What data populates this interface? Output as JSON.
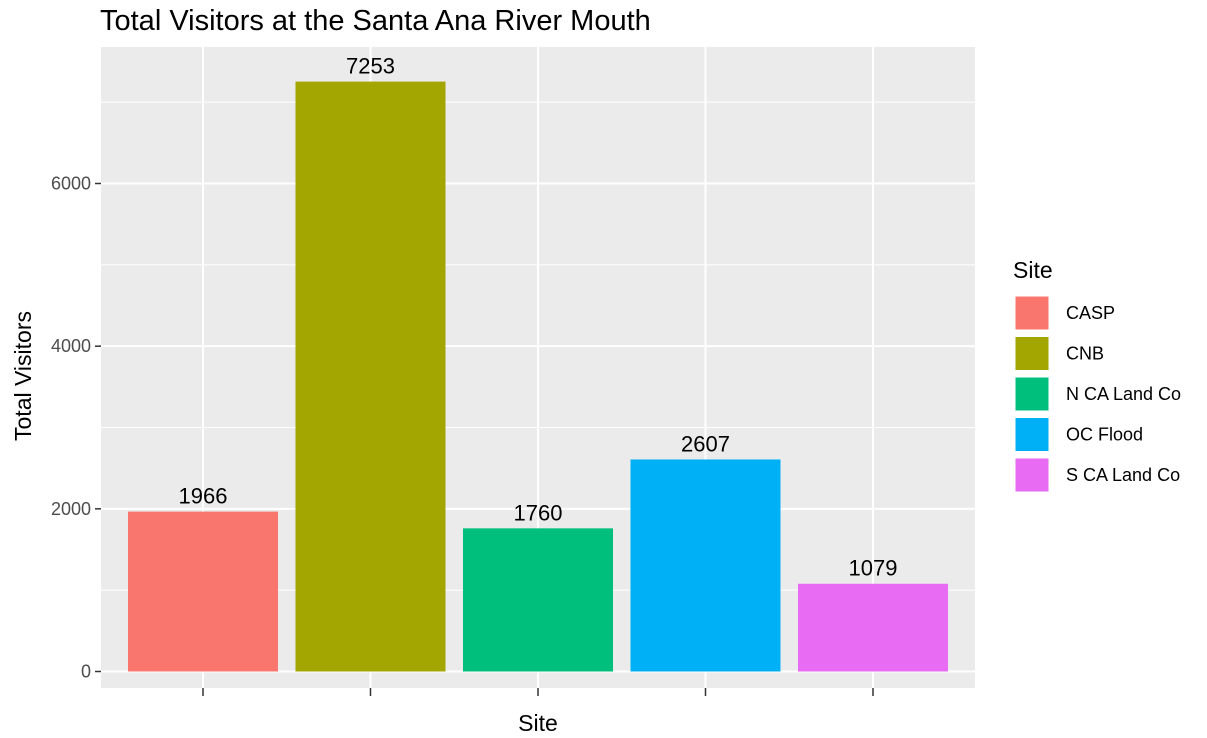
{
  "chart_data": {
    "type": "bar",
    "title": "Total Visitors at the Santa Ana River Mouth",
    "xlabel": "Site",
    "ylabel": "Total Visitors",
    "categories": [
      "CASP",
      "CNB",
      "N CA Land Co",
      "OC Flood",
      "S CA Land Co"
    ],
    "values": [
      1966,
      7253,
      1760,
      2607,
      1079
    ],
    "colors": [
      "#F8766D",
      "#A3A500",
      "#00BF7D",
      "#00B0F6",
      "#E76BF3"
    ],
    "ylim": [
      0,
      7615
    ],
    "yticks": [
      0,
      2000,
      4000,
      6000
    ],
    "ytick_labels": [
      "0",
      "2000",
      "4000",
      "6000"
    ],
    "x_tick_labels_shown": false,
    "grid": true,
    "panel_background": "#EBEBEB",
    "grid_color": "#FFFFFF",
    "legend": {
      "title": "Site",
      "position": "right",
      "entries": [
        "CASP",
        "CNB",
        "N CA Land Co",
        "OC Flood",
        "S CA Land Co"
      ]
    }
  }
}
